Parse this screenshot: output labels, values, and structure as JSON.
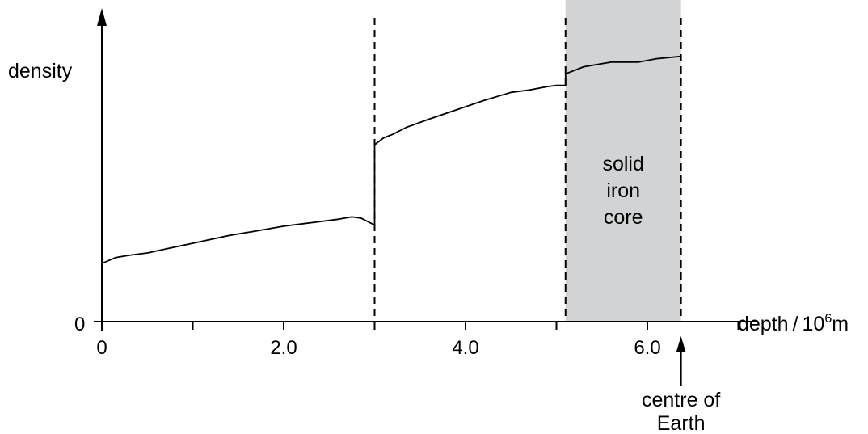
{
  "chart_data": {
    "type": "line",
    "ylabel": "density",
    "xlabel_main": "depth / 10",
    "xlabel_sup": "6",
    "xlabel_unit": "m",
    "y_origin_label": "0",
    "x_ticks": [
      {
        "value": 0,
        "label": "0"
      },
      {
        "value": 2.0,
        "label": "2.0"
      },
      {
        "value": 4.0,
        "label": "4.0"
      },
      {
        "value": 6.0,
        "label": "6.0"
      }
    ],
    "x_minor_ticks": [
      1.0,
      3.0,
      5.0,
      7.0
    ],
    "xlim": [
      0,
      7.0
    ],
    "ylim": [
      0,
      12.0
    ],
    "boundaries": [
      3.0,
      5.1,
      6.37
    ],
    "centre_of_earth": 6.37,
    "shaded_region": {
      "x_from": 5.1,
      "x_to": 6.37,
      "color": "#d1d3d4",
      "label_lines": [
        "solid",
        "iron",
        "core"
      ]
    },
    "annotation_lines": [
      "centre of",
      "Earth"
    ],
    "series": [
      {
        "x": [
          0,
          0.15,
          0.3,
          0.5,
          0.8,
          1.1,
          1.4,
          1.7,
          2.0,
          2.3,
          2.6,
          2.75,
          2.85,
          3.0
        ],
        "y": [
          2.5,
          2.75,
          2.85,
          2.95,
          3.2,
          3.45,
          3.7,
          3.9,
          4.1,
          4.25,
          4.4,
          4.5,
          4.45,
          4.15
        ]
      },
      {
        "x": [
          3.0,
          3.0,
          3.1,
          3.2,
          3.35,
          3.6,
          3.9,
          4.2,
          4.5,
          4.7,
          4.9,
          5.0,
          5.1
        ],
        "y": [
          4.15,
          7.6,
          7.9,
          8.05,
          8.35,
          8.7,
          9.1,
          9.5,
          9.85,
          9.95,
          10.1,
          10.15,
          10.15
        ]
      },
      {
        "x": [
          5.1,
          5.1,
          5.3,
          5.6,
          5.9,
          6.1,
          6.37
        ],
        "y": [
          10.15,
          10.65,
          10.95,
          11.15,
          11.15,
          11.3,
          11.4
        ]
      }
    ]
  }
}
